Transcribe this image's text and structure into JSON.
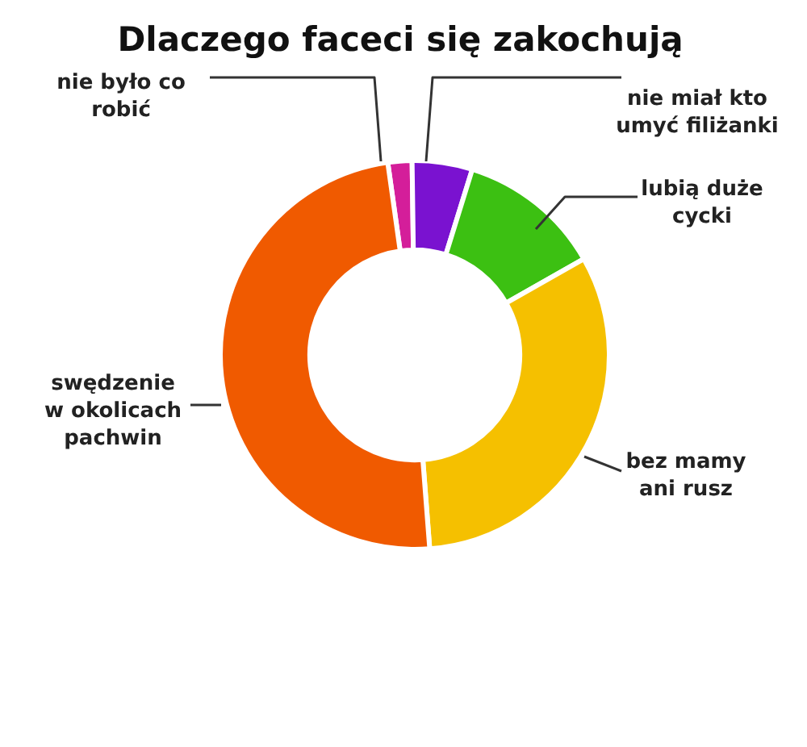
{
  "chart_data": {
    "type": "donut",
    "title": "Dlaczego faceci się zakochują",
    "categories": [
      "nie było co\nrobić",
      "nie miał kto\numyć filiżanki",
      "lubią duże\ncycki",
      "bez mamy\nani rusz",
      "swędzenie\nw okolicach\npachwin"
    ],
    "values": [
      2,
      5,
      12,
      32,
      49
    ],
    "colors": [
      "#d41e9a",
      "#7a12d0",
      "#3cc012",
      "#f5c000",
      "#f05a00"
    ],
    "legend": false
  }
}
